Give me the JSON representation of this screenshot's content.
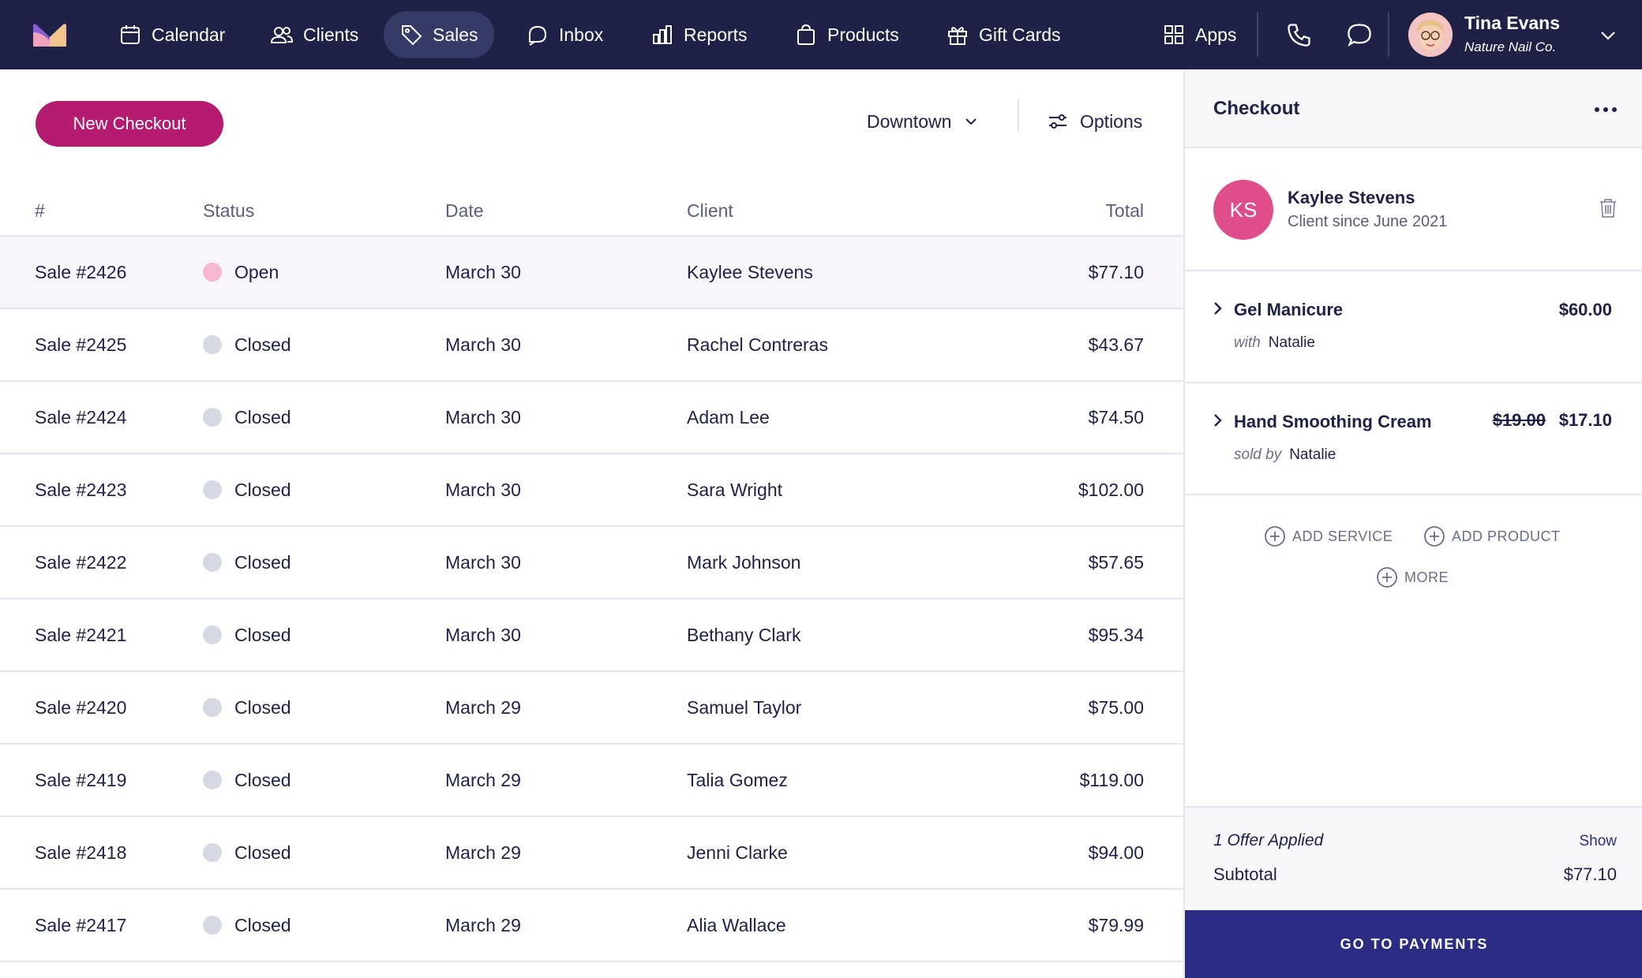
{
  "nav": {
    "items": [
      {
        "label": "Calendar",
        "icon": "calendar-icon"
      },
      {
        "label": "Clients",
        "icon": "users-icon"
      },
      {
        "label": "Sales",
        "icon": "tag-icon",
        "active": true
      },
      {
        "label": "Inbox",
        "icon": "inbox-icon"
      },
      {
        "label": "Reports",
        "icon": "bar-chart-icon"
      },
      {
        "label": "Products",
        "icon": "shopping-bag-icon"
      },
      {
        "label": "Gift Cards",
        "icon": "gift-icon"
      }
    ],
    "apps_label": "Apps",
    "user": {
      "name": "Tina Evans",
      "company": "Nature Nail Co."
    }
  },
  "toolbar": {
    "new_checkout_label": "New Checkout",
    "location": "Downtown",
    "options_label": "Options"
  },
  "table": {
    "headers": {
      "num": "#",
      "status": "Status",
      "date": "Date",
      "client": "Client",
      "total": "Total"
    },
    "rows": [
      {
        "num": "Sale #2426",
        "status": "Open",
        "date": "March 30",
        "client": "Kaylee Stevens",
        "total": "$77.10"
      },
      {
        "num": "Sale #2425",
        "status": "Closed",
        "date": "March 30",
        "client": "Rachel Contreras",
        "total": "$43.67"
      },
      {
        "num": "Sale #2424",
        "status": "Closed",
        "date": "March 30",
        "client": "Adam Lee",
        "total": "$74.50"
      },
      {
        "num": "Sale #2423",
        "status": "Closed",
        "date": "March 30",
        "client": "Sara Wright",
        "total": "$102.00"
      },
      {
        "num": "Sale #2422",
        "status": "Closed",
        "date": "March 30",
        "client": "Mark Johnson",
        "total": "$57.65"
      },
      {
        "num": "Sale #2421",
        "status": "Closed",
        "date": "March 30",
        "client": "Bethany Clark",
        "total": "$95.34"
      },
      {
        "num": "Sale #2420",
        "status": "Closed",
        "date": "March 29",
        "client": "Samuel Taylor",
        "total": "$75.00"
      },
      {
        "num": "Sale #2419",
        "status": "Closed",
        "date": "March 29",
        "client": "Talia Gomez",
        "total": "$119.00"
      },
      {
        "num": "Sale #2418",
        "status": "Closed",
        "date": "March 29",
        "client": "Jenni Clarke",
        "total": "$94.00"
      },
      {
        "num": "Sale #2417",
        "status": "Closed",
        "date": "March 29",
        "client": "Alia Wallace",
        "total": "$79.99"
      }
    ]
  },
  "checkout": {
    "title": "Checkout",
    "client": {
      "initials": "KS",
      "name": "Kaylee Stevens",
      "since": "Client since June 2021"
    },
    "items": [
      {
        "name": "Gel Manicure",
        "price": "$60.00",
        "sub_prefix": "with",
        "staff": "Natalie"
      },
      {
        "name": "Hand Smoothing Cream",
        "old_price": "$19.00",
        "price": "$17.10",
        "sub_prefix": "sold by",
        "staff": "Natalie"
      }
    ],
    "add_service": "ADD SERVICE",
    "add_product": "ADD PRODUCT",
    "more": "MORE",
    "offer_text": "1 Offer Applied",
    "show_label": "Show",
    "subtotal_label": "Subtotal",
    "subtotal_value": "$77.10",
    "pay_label": "GO TO PAYMENTS"
  },
  "colors": {
    "nav_bg": "#1f2147",
    "accent": "#b51b6f",
    "open_dot": "#f5b8cf",
    "closed_dot": "#d6d8e4",
    "pay_button": "#2b2d85",
    "client_avatar": "#e04d8b"
  }
}
